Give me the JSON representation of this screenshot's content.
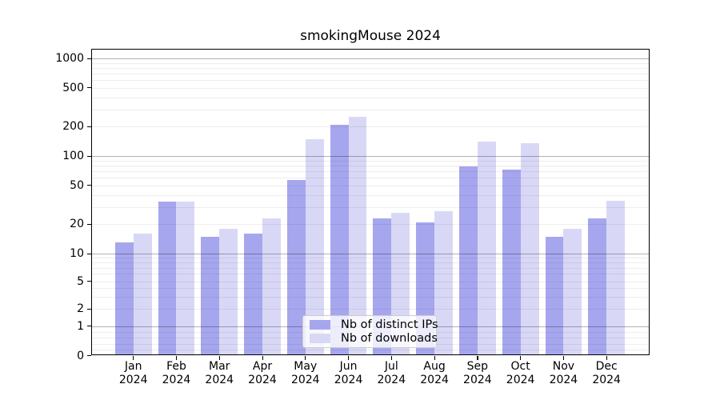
{
  "title": "smokingMouse 2024",
  "chart_data": {
    "type": "bar",
    "title": "smokingMouse 2024",
    "categories": [
      "Jan",
      "Feb",
      "Mar",
      "Apr",
      "May",
      "Jun",
      "Jul",
      "Aug",
      "Sep",
      "Oct",
      "Nov",
      "Dec"
    ],
    "year_label": "2024",
    "series": [
      {
        "name": "Nb of distinct IPs",
        "color": "#a6a6ee",
        "values": [
          13,
          34,
          15,
          16,
          57,
          210,
          23,
          21,
          78,
          72,
          15,
          23
        ]
      },
      {
        "name": "Nb of downloads",
        "color": "#d8d8f6",
        "values": [
          16,
          34,
          18,
          23,
          148,
          252,
          26,
          27,
          140,
          135,
          18,
          35
        ]
      }
    ],
    "yscale": "symlog",
    "yticks": [
      0,
      1,
      2,
      5,
      10,
      20,
      50,
      100,
      200,
      500,
      1000
    ],
    "ylim": [
      0,
      1250
    ],
    "grid": true,
    "legend_position": "lower center"
  }
}
